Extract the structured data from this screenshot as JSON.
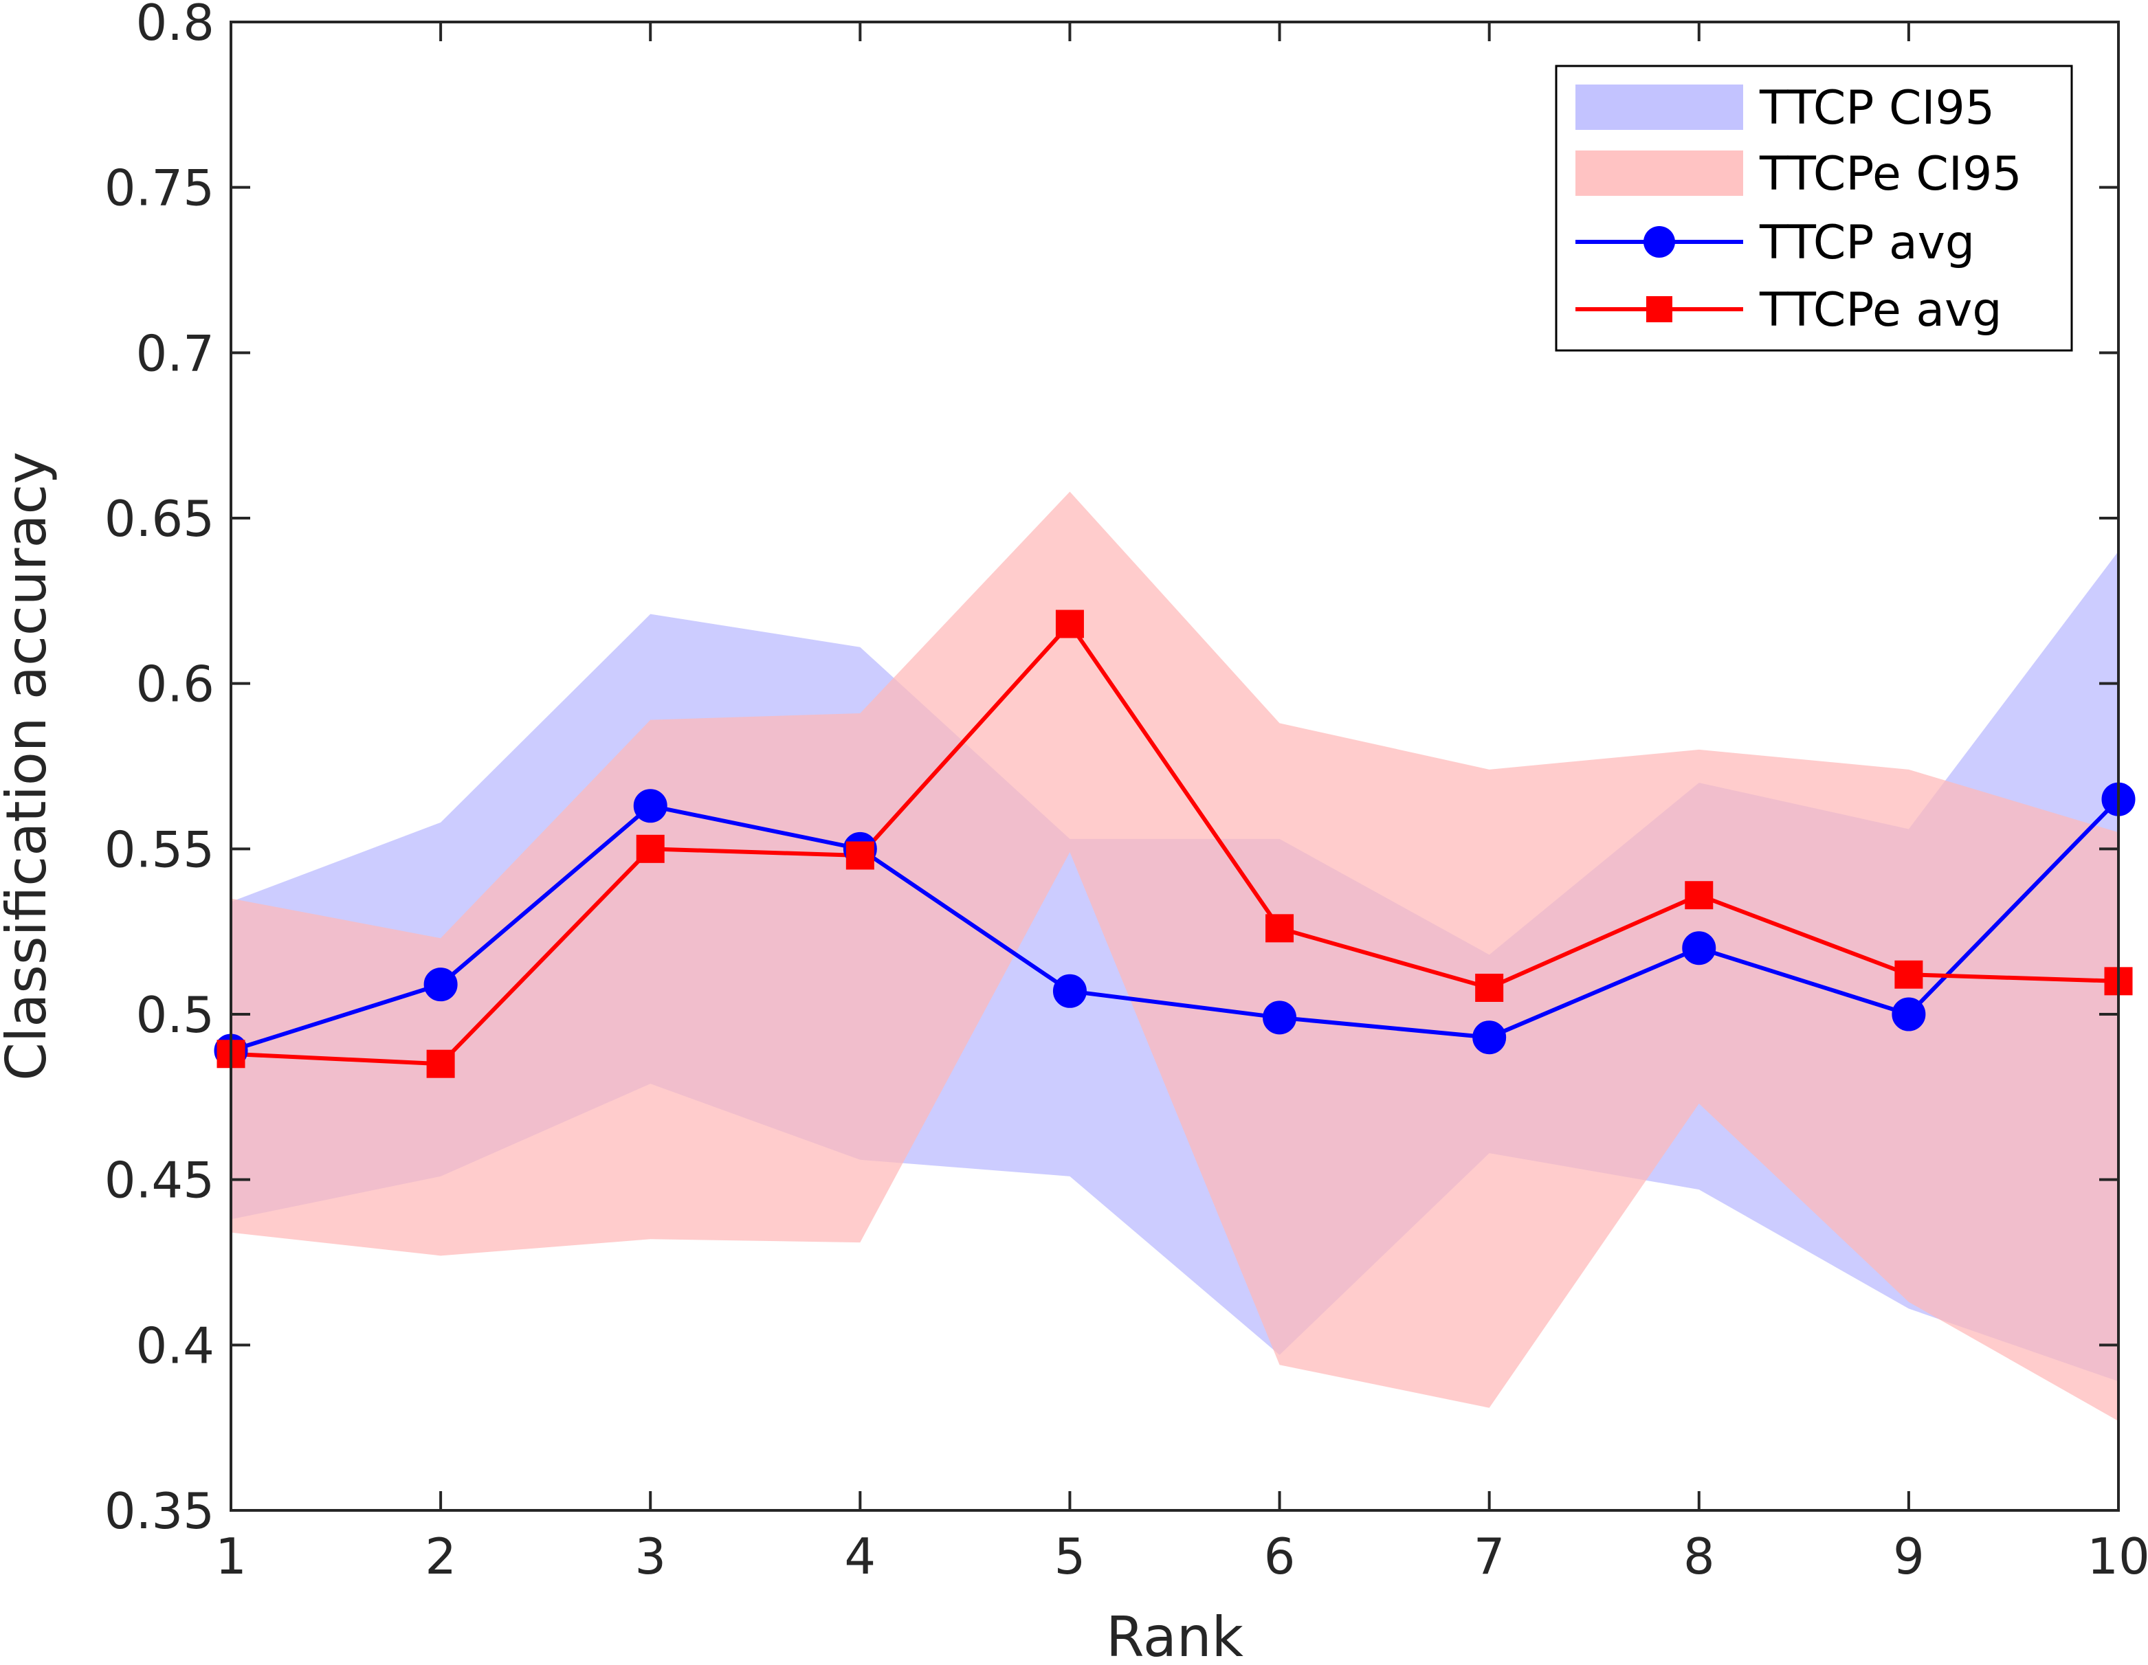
{
  "chart_data": {
    "type": "line",
    "xlabel": "Rank",
    "ylabel": "Classification accuracy",
    "xlim": [
      1,
      10
    ],
    "ylim": [
      0.35,
      0.8
    ],
    "xticks": [
      "1",
      "2",
      "3",
      "4",
      "5",
      "6",
      "7",
      "8",
      "9",
      "10"
    ],
    "yticks": [
      "0.35",
      "0.4",
      "0.45",
      "0.5",
      "0.55",
      "0.6",
      "0.65",
      "0.7",
      "0.75",
      "0.8"
    ],
    "x": [
      1,
      2,
      3,
      4,
      5,
      6,
      7,
      8,
      9,
      10
    ],
    "grid": false,
    "legend_placement": "top-right",
    "bands": [
      {
        "name": "TTCP CI95",
        "color": "#b8b8ff",
        "upper": [
          0.534,
          0.558,
          0.621,
          0.611,
          0.553,
          0.553,
          0.518,
          0.57,
          0.556,
          0.64
        ],
        "lower": [
          0.438,
          0.451,
          0.479,
          0.456,
          0.451,
          0.397,
          0.458,
          0.447,
          0.411,
          0.389
        ]
      },
      {
        "name": "TTCPe CI95",
        "color": "#ffb8b8",
        "upper": [
          0.535,
          0.523,
          0.589,
          0.591,
          0.658,
          0.588,
          0.574,
          0.58,
          0.574,
          0.555
        ],
        "lower": [
          0.434,
          0.427,
          0.432,
          0.431,
          0.549,
          0.394,
          0.381,
          0.473,
          0.413,
          0.377
        ]
      }
    ],
    "series": [
      {
        "name": "TTCP avg",
        "color": "#0000ff",
        "marker": "circle",
        "values": [
          0.489,
          0.509,
          0.563,
          0.55,
          0.507,
          0.499,
          0.493,
          0.52,
          0.5,
          0.565
        ]
      },
      {
        "name": "TTCPe avg",
        "color": "#ff0000",
        "marker": "square",
        "values": [
          0.488,
          0.485,
          0.55,
          0.548,
          0.618,
          0.526,
          0.508,
          0.536,
          0.512,
          0.51
        ]
      }
    ]
  }
}
